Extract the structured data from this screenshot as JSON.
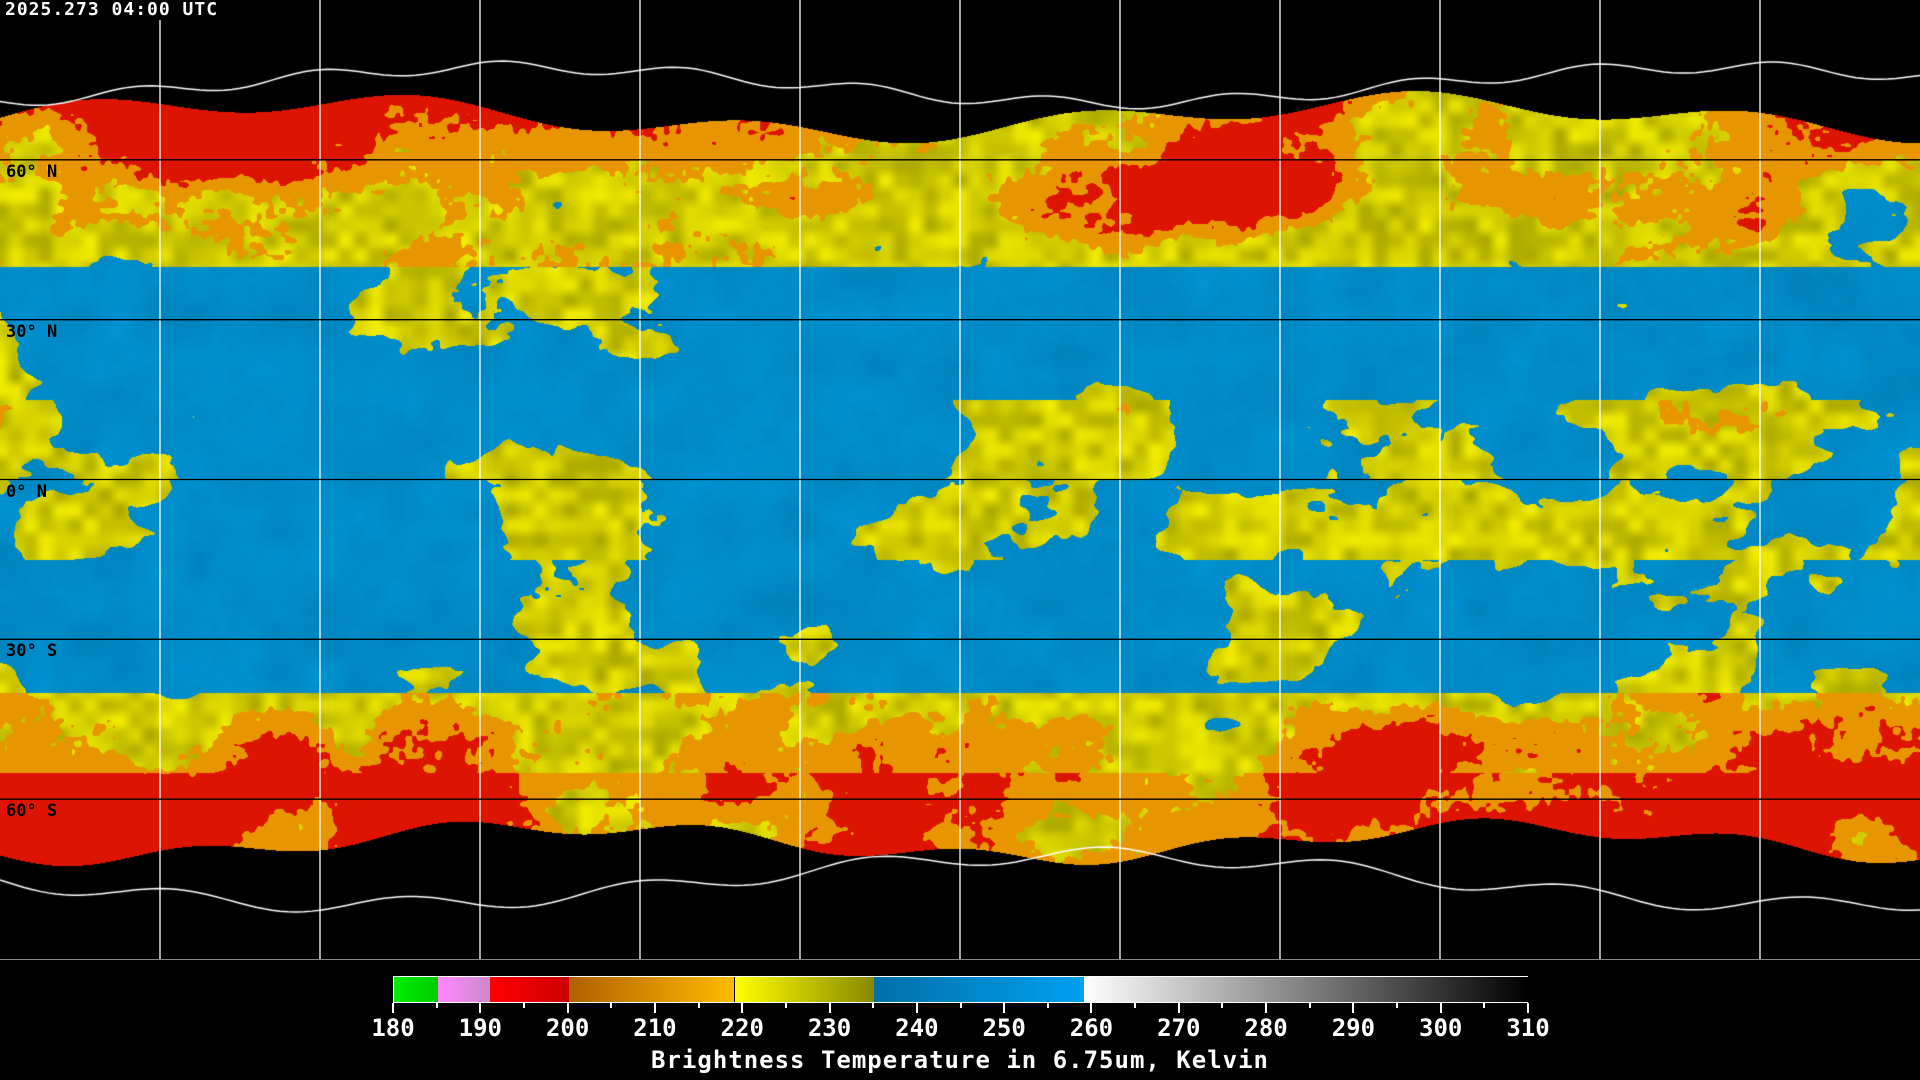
{
  "header": {
    "timestamp": "2025.273 04:00 UTC"
  },
  "map": {
    "projection": "equirectangular",
    "lon_range": [
      -180,
      180
    ],
    "lat_range": [
      -90,
      90
    ],
    "grid_spacing_deg": 30,
    "lat_labels": [
      {
        "lat": 60,
        "label": "60° N"
      },
      {
        "lat": 30,
        "label": "30° N"
      },
      {
        "lat": 0,
        "label": "0° N"
      },
      {
        "lat": -30,
        "label": "30° S"
      },
      {
        "lat": -60,
        "label": "60° S"
      }
    ],
    "colors": {
      "background": "#000000",
      "dry": "#0096d8",
      "moist": "#d8d800",
      "cold": "#e89a00",
      "very_cold": "#e00000",
      "gridline_on_data": "#000000",
      "gridline_on_background": "#ffffff"
    }
  },
  "colorbar": {
    "min": 180,
    "max": 310,
    "segments": [
      {
        "from": 180,
        "to": 185,
        "start": "#00ee00",
        "end": "#00cc00"
      },
      {
        "from": 185,
        "to": 191,
        "start": "#ff88ff",
        "end": "#cc88cc"
      },
      {
        "from": 191,
        "to": 200,
        "start": "#ff0000",
        "end": "#cc0000"
      },
      {
        "from": 200,
        "to": 219,
        "start": "#b06000",
        "end": "#ffbb00"
      },
      {
        "from": 219,
        "to": 235,
        "start": "#ffff00",
        "end": "#888800"
      },
      {
        "from": 235,
        "to": 259,
        "start": "#0070a8",
        "end": "#00a0f0"
      },
      {
        "from": 259,
        "to": 310,
        "start": "#ffffff",
        "end": "#000000"
      }
    ],
    "tick_labels": [
      "180",
      "190",
      "200",
      "210",
      "220",
      "230",
      "240",
      "250",
      "260",
      "270",
      "280",
      "290",
      "300",
      "310"
    ],
    "title": "Brightness Temperature in 6.75um, Kelvin"
  }
}
